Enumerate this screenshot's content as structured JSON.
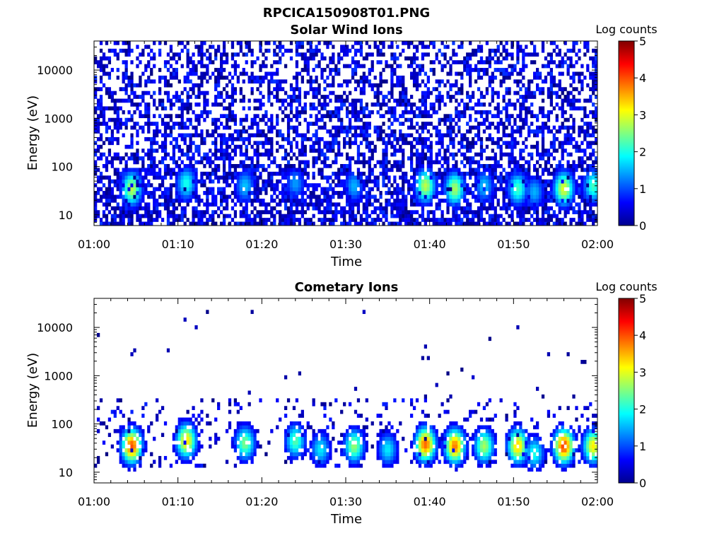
{
  "figure_title": "RPCICA150908T01.PNG",
  "colorbar_ticks": [
    "0",
    "1",
    "2",
    "3",
    "4",
    "5"
  ],
  "chart_data": [
    {
      "type": "heatmap",
      "title": "Solar Wind Ions",
      "xlabel": "Time",
      "ylabel": "Energy (eV)",
      "x_ticks": [
        "01:00",
        "01:10",
        "01:20",
        "01:30",
        "01:40",
        "01:50",
        "02:00"
      ],
      "x_range": [
        "01:00",
        "02:00"
      ],
      "y_ticks": [
        "10",
        "100",
        "1000",
        "10000"
      ],
      "y_scale": "log",
      "y_range": [
        6,
        40000
      ],
      "colorbar_label": "Log counts",
      "colorbar_range": [
        0,
        5
      ],
      "colormap": "jet",
      "background_noise_level": "0-1 log counts across all energies",
      "bursts": [
        {
          "time_min": 4.5,
          "energy_eV": 35,
          "log_counts": 2.8
        },
        {
          "time_min": 11.0,
          "energy_eV": 45,
          "log_counts": 2.0
        },
        {
          "time_min": 18.0,
          "energy_eV": 40,
          "log_counts": 1.6
        },
        {
          "time_min": 24.0,
          "energy_eV": 45,
          "log_counts": 1.4
        },
        {
          "time_min": 31.0,
          "energy_eV": 40,
          "log_counts": 1.5
        },
        {
          "time_min": 39.5,
          "energy_eV": 40,
          "log_counts": 2.8
        },
        {
          "time_min": 43.0,
          "energy_eV": 35,
          "log_counts": 2.7
        },
        {
          "time_min": 46.5,
          "energy_eV": 40,
          "log_counts": 1.6
        },
        {
          "time_min": 50.5,
          "energy_eV": 35,
          "log_counts": 2.2
        },
        {
          "time_min": 52.5,
          "energy_eV": 30,
          "log_counts": 1.5
        },
        {
          "time_min": 56.0,
          "energy_eV": 35,
          "log_counts": 3.0
        },
        {
          "time_min": 59.5,
          "energy_eV": 40,
          "log_counts": 2.2
        }
      ]
    },
    {
      "type": "heatmap",
      "title": "Cometary Ions",
      "xlabel": "Time",
      "ylabel": "Energy (eV)",
      "x_ticks": [
        "01:00",
        "01:10",
        "01:20",
        "01:30",
        "01:40",
        "01:50",
        "02:00"
      ],
      "x_range": [
        "01:00",
        "02:00"
      ],
      "y_ticks": [
        "10",
        "100",
        "1000",
        "10000"
      ],
      "y_scale": "log",
      "y_range": [
        6,
        40000
      ],
      "colorbar_label": "Log counts",
      "colorbar_range": [
        0,
        5
      ],
      "colormap": "jet",
      "bursts": [
        {
          "time_min": 4.5,
          "energy_eV": 35,
          "log_counts": 4.0
        },
        {
          "time_min": 11.0,
          "energy_eV": 45,
          "log_counts": 3.3
        },
        {
          "time_min": 18.0,
          "energy_eV": 40,
          "log_counts": 2.5
        },
        {
          "time_min": 24.0,
          "energy_eV": 45,
          "log_counts": 2.3
        },
        {
          "time_min": 27.0,
          "energy_eV": 30,
          "log_counts": 1.8
        },
        {
          "time_min": 31.0,
          "energy_eV": 35,
          "log_counts": 2.6
        },
        {
          "time_min": 35.0,
          "energy_eV": 30,
          "log_counts": 1.8
        },
        {
          "time_min": 39.5,
          "energy_eV": 38,
          "log_counts": 3.9
        },
        {
          "time_min": 43.0,
          "energy_eV": 35,
          "log_counts": 3.8
        },
        {
          "time_min": 46.5,
          "energy_eV": 35,
          "log_counts": 2.7
        },
        {
          "time_min": 50.5,
          "energy_eV": 35,
          "log_counts": 3.4
        },
        {
          "time_min": 52.5,
          "energy_eV": 25,
          "log_counts": 2.0
        },
        {
          "time_min": 56.0,
          "energy_eV": 35,
          "log_counts": 4.1
        },
        {
          "time_min": 59.5,
          "energy_eV": 35,
          "log_counts": 3.2
        }
      ]
    }
  ]
}
